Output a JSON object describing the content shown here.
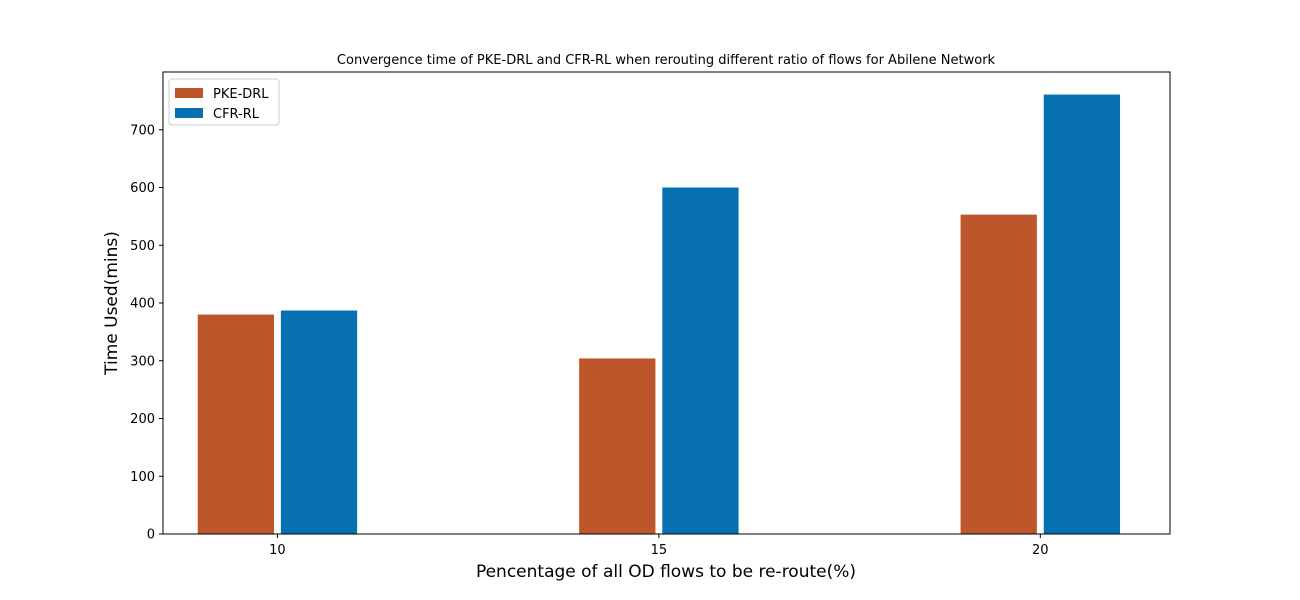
{
  "chart_data": {
    "type": "bar",
    "title": "Convergence time of PKE-DRL and CFR-RL when rerouting different ratio of flows for Abilene Network",
    "xlabel": "Pencentage of all OD flows to be re-route(%)",
    "ylabel": "Time Used(mins)",
    "categories": [
      "10",
      "15",
      "20"
    ],
    "series": [
      {
        "name": "PKE-DRL",
        "color": "#BD572B",
        "values": [
          380,
          304,
          553
        ]
      },
      {
        "name": "CFR-RL",
        "color": "#0670B1",
        "values": [
          387,
          600,
          761
        ]
      }
    ],
    "ylim": [
      0,
      800
    ],
    "yticks": [
      0,
      100,
      200,
      300,
      400,
      500,
      600,
      700
    ],
    "grid": false,
    "legend_position": "top-left"
  }
}
